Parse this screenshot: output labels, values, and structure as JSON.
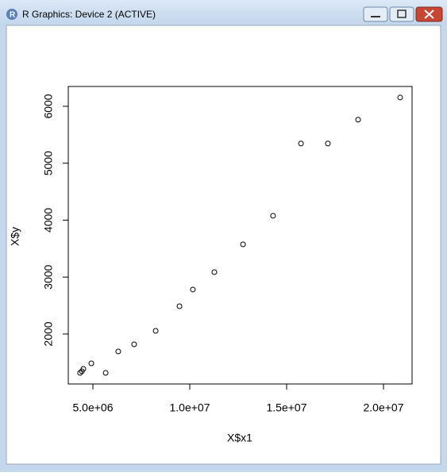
{
  "window": {
    "title": "R Graphics: Device 2 (ACTIVE)"
  },
  "chart_data": {
    "type": "scatter",
    "x_label": "X$x1",
    "y_label": "X$y",
    "x": [
      4340000,
      4430000,
      4510000,
      4920000,
      5660000,
      6310000,
      7130000,
      8240000,
      9470000,
      10160000,
      11270000,
      12750000,
      14300000,
      15740000,
      17130000,
      18690000,
      20860000
    ],
    "values": [
      1317,
      1345,
      1387,
      1484,
      1317,
      1693,
      1819,
      2056,
      2488,
      2781,
      3087,
      3575,
      4077,
      5346,
      5346,
      5764,
      6154
    ],
    "color": "#000000",
    "xlim": [
      3730000,
      21475000
    ],
    "ylim": [
      1122,
      6348
    ],
    "xticks": [
      {
        "value": 5000000,
        "label": "5.0e+06"
      },
      {
        "value": 10000000,
        "label": "1.0e+07"
      },
      {
        "value": 15000000,
        "label": "1.5e+07"
      },
      {
        "value": 20000000,
        "label": "2.0e+07"
      }
    ],
    "yticks": [
      2000,
      3000,
      4000,
      5000,
      6000
    ]
  }
}
